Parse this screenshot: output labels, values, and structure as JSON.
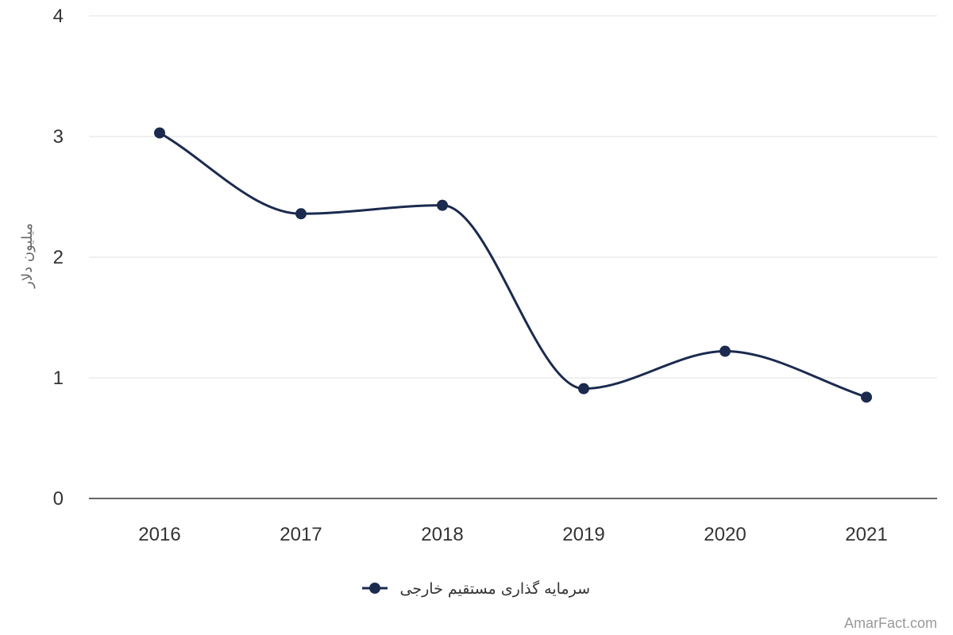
{
  "chart_data": {
    "type": "line",
    "categories": [
      "2016",
      "2017",
      "2018",
      "2019",
      "2020",
      "2021"
    ],
    "series": [
      {
        "name": "سرمایه گذاری مستقیم خارجی",
        "values": [
          3.03,
          2.36,
          2.43,
          0.91,
          1.22,
          0.84
        ],
        "color": "#1b2a4e"
      }
    ],
    "ylabel": "میلیون دلار",
    "xlabel": "",
    "ylim": [
      0,
      4
    ],
    "yticks": [
      0,
      1,
      2,
      3,
      4
    ],
    "grid": true,
    "curve": "smooth",
    "legend_position": "bottom-center"
  },
  "credit": "AmarFact.com"
}
